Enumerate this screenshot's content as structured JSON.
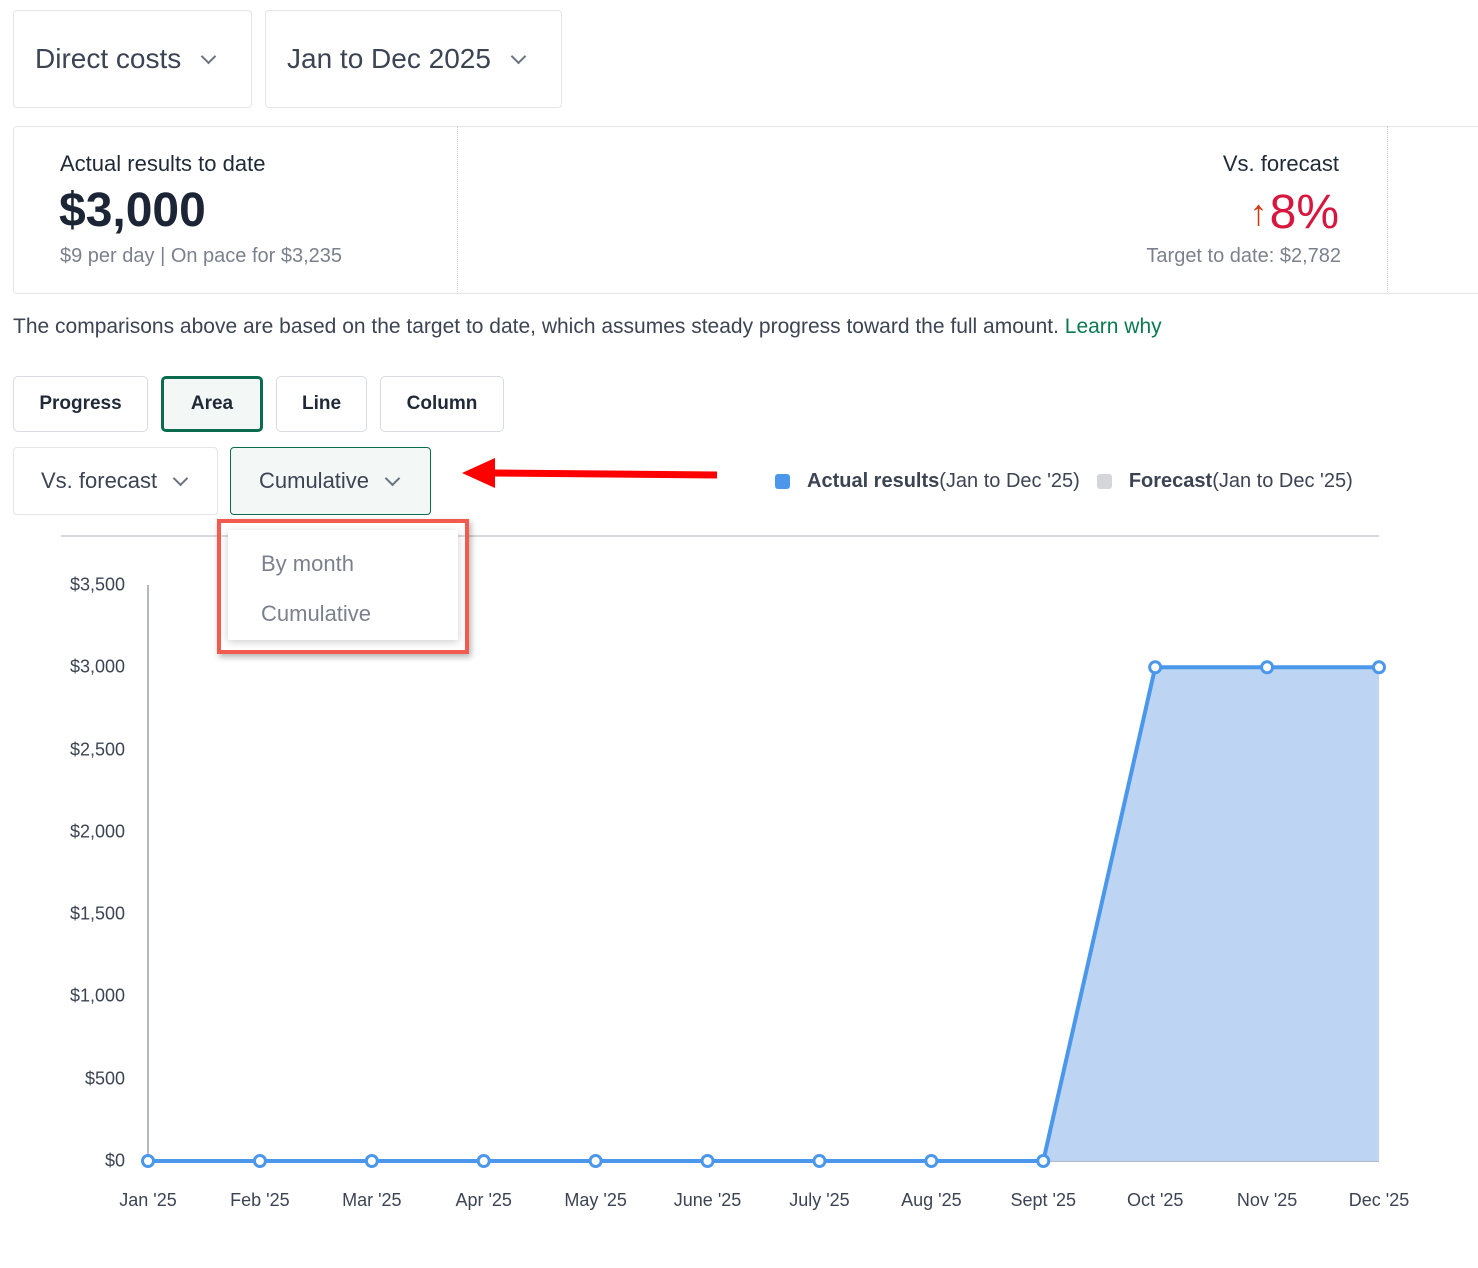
{
  "filters": {
    "category": "Direct costs",
    "period": "Jan to Dec 2025"
  },
  "summary": {
    "actual_label": "Actual results to date",
    "actual_value": "$3,000",
    "actual_sub": "$9 per day | On pace for $3,235",
    "vs_label": "Vs. forecast",
    "vs_value": "8%",
    "vs_sub": "Target to date: $2,782"
  },
  "note": {
    "text": "The comparisons above are based on the target to date, which assumes steady progress toward the full amount.",
    "link": "Learn why"
  },
  "chart_types": [
    "Progress",
    "Area",
    "Line",
    "Column"
  ],
  "active_chart_type": "Area",
  "compare_select": "Vs. forecast",
  "mode_select": "Cumulative",
  "mode_options": [
    "By month",
    "Cumulative"
  ],
  "legend": [
    {
      "bold": "Actual results",
      "rest": " (Jan to Dec '25)",
      "color": "#4a97ec"
    },
    {
      "bold": "Forecast",
      "rest": " (Jan to Dec '25)",
      "color": "#d4d6da"
    }
  ],
  "chart_data": {
    "type": "area",
    "categories": [
      "Jan '25",
      "Feb '25",
      "Mar '25",
      "Apr '25",
      "May '25",
      "June '25",
      "July '25",
      "Aug '25",
      "Sept '25",
      "Oct '25",
      "Nov '25",
      "Dec '25"
    ],
    "series": [
      {
        "name": "Actual results",
        "values": [
          0,
          0,
          0,
          0,
          0,
          0,
          0,
          0,
          0,
          3000,
          3000,
          3000
        ]
      }
    ],
    "yticks": [
      "$0",
      "$500",
      "$1,000",
      "$1,500",
      "$2,000",
      "$2,500",
      "$3,000",
      "$3,500"
    ],
    "ylim": [
      0,
      3500
    ]
  }
}
